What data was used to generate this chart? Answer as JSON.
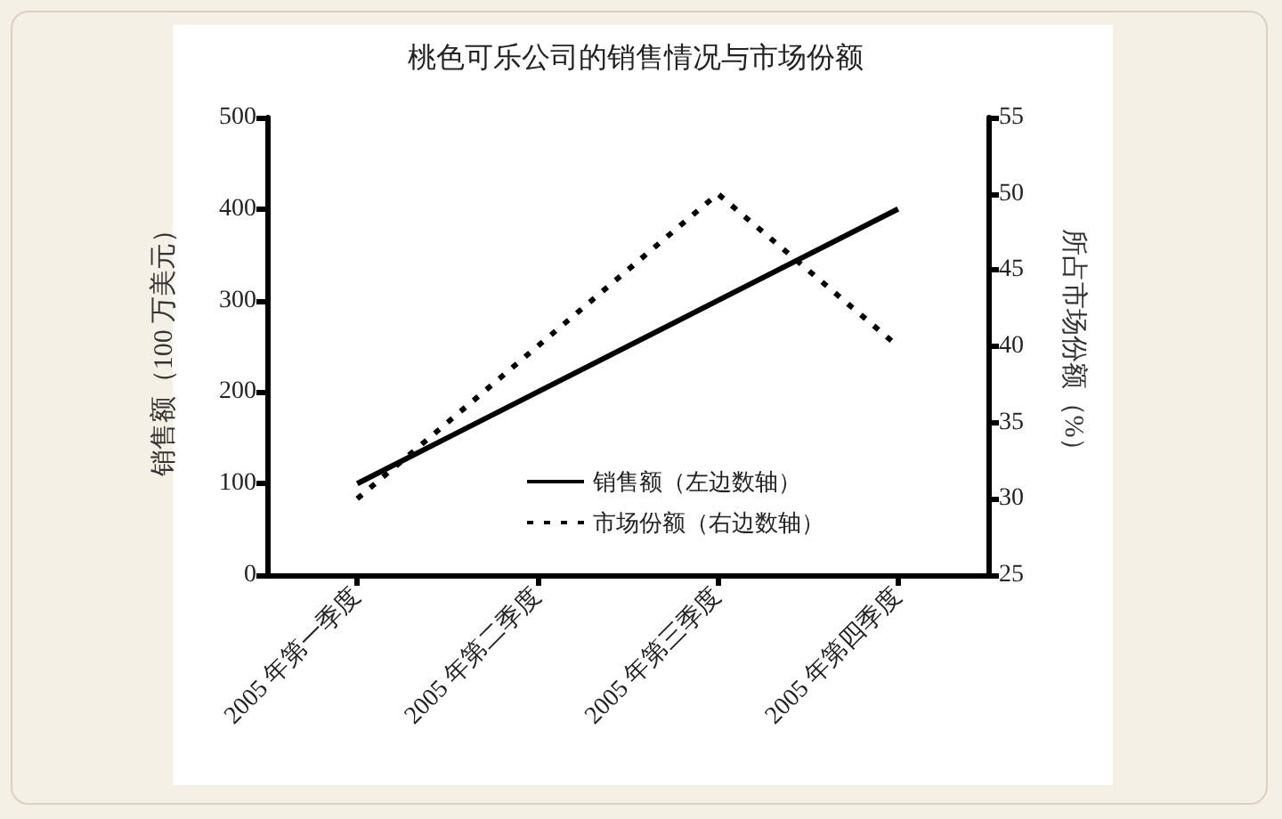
{
  "chart_data": {
    "type": "line",
    "title": "桃色可乐公司的销售情况与市场份额",
    "categories": [
      "2005 年第一季度",
      "2005 年第二季度",
      "2005 年第三季度",
      "2005 年第四季度"
    ],
    "ylabel": "销售额（100 万美元）",
    "y2label": "所占市场份额（%）",
    "series": [
      {
        "name": "销售额（左边数轴）",
        "color": "#000000",
        "values": [
          100,
          200,
          300,
          400
        ],
        "line_style": "solid"
      },
      {
        "name": "市场份额（右边数轴）",
        "color": "#000000",
        "values": [
          30,
          40,
          50,
          40
        ],
        "axis": "y2",
        "line_style": "dotted"
      }
    ],
    "ylim": [
      0,
      500
    ],
    "yticks": [
      0,
      100,
      200,
      300,
      400,
      500
    ],
    "y2lim": [
      25,
      55
    ],
    "y2ticks": [
      25,
      30,
      35,
      40,
      45,
      50,
      55
    ],
    "grid": false,
    "legend": "bottom",
    "marker": "none"
  }
}
